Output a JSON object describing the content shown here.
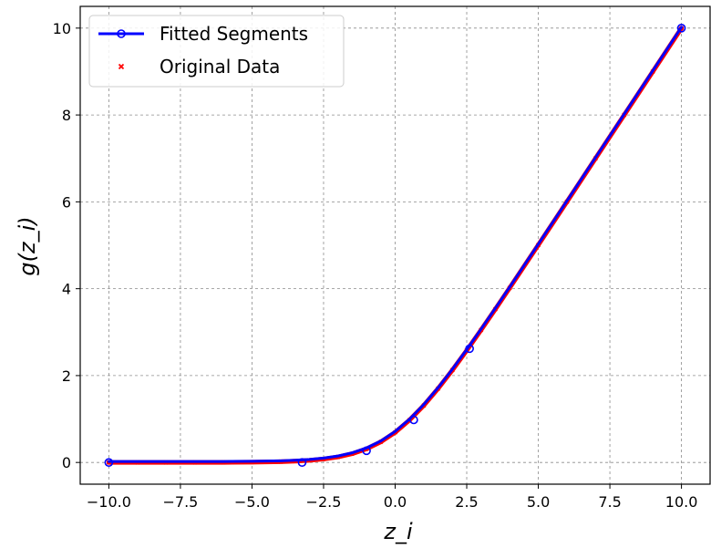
{
  "chart_data": {
    "type": "line",
    "title": "",
    "xlabel": "z_i",
    "ylabel": "g(z_i)",
    "xlim": [
      -11,
      11
    ],
    "ylim": [
      -0.5,
      10.5
    ],
    "x_ticks": [
      -10.0,
      -7.5,
      -5.0,
      -2.5,
      0.0,
      2.5,
      5.0,
      7.5,
      10.0
    ],
    "x_tick_labels": [
      "−10.0",
      "−7.5",
      "−5.0",
      "−2.5",
      "0.0",
      "2.5",
      "5.0",
      "7.5",
      "10.0"
    ],
    "y_ticks": [
      0,
      2,
      4,
      6,
      8,
      10
    ],
    "y_tick_labels": [
      "0",
      "2",
      "4",
      "6",
      "8",
      "10"
    ],
    "grid": true,
    "legend_position": "top-left",
    "series": [
      {
        "name": "Fitted Segments",
        "color": "#0000ff",
        "style": "line-with-circle-markers",
        "x": [
          -10.0,
          -3.25,
          -1.0,
          0.65,
          2.6,
          10.0
        ],
        "y": [
          0.0,
          0.0,
          0.27,
          0.98,
          2.62,
          10.0
        ]
      },
      {
        "name": "Original Data",
        "color": "#ff0000",
        "style": "x-markers-dense",
        "x": [
          -10.0,
          -9.0,
          -8.0,
          -7.0,
          -6.0,
          -5.0,
          -4.0,
          -3.5,
          -3.0,
          -2.5,
          -2.0,
          -1.5,
          -1.0,
          -0.5,
          0.0,
          0.5,
          1.0,
          1.5,
          2.0,
          2.5,
          3.0,
          3.5,
          4.0,
          5.0,
          6.0,
          7.0,
          8.0,
          9.0,
          10.0
        ],
        "y": [
          0.0,
          0.0,
          0.0,
          0.001,
          0.002,
          0.007,
          0.018,
          0.03,
          0.049,
          0.079,
          0.127,
          0.201,
          0.313,
          0.474,
          0.693,
          0.974,
          1.313,
          1.701,
          2.127,
          2.579,
          3.049,
          3.53,
          4.018,
          5.007,
          6.002,
          7.001,
          8.0,
          9.0,
          10.0
        ]
      }
    ]
  }
}
